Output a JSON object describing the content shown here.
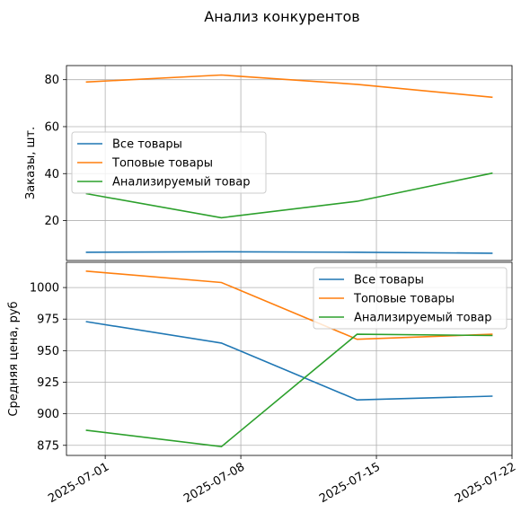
{
  "figure_title": "Анализ конкурентов",
  "chart_data": [
    {
      "type": "line",
      "ylabel": "Заказы, шт.",
      "x": [
        "2025-06-30",
        "2025-07-07",
        "2025-07-14",
        "2025-07-21"
      ],
      "ylim": [
        3,
        86
      ],
      "yticks": [
        20,
        40,
        60,
        80
      ],
      "grid": true,
      "legend_position": "center-left",
      "series": [
        {
          "name": "Все товары",
          "color": "#1f77b4",
          "values": [
            6.5,
            6.7,
            6.5,
            6.1
          ]
        },
        {
          "name": "Топовые товары",
          "color": "#ff7f0e",
          "values": [
            79,
            82,
            78,
            72.5
          ]
        },
        {
          "name": "Анализируемый товар",
          "color": "#2ca02c",
          "values": [
            31.5,
            21.2,
            28.2,
            40.2
          ]
        }
      ]
    },
    {
      "type": "line",
      "ylabel": "Средняя цена, руб",
      "x": [
        "2025-06-30",
        "2025-07-07",
        "2025-07-14",
        "2025-07-21"
      ],
      "ylim": [
        867,
        1020
      ],
      "yticks": [
        875,
        900,
        925,
        950,
        975,
        1000
      ],
      "grid": true,
      "legend_position": "upper-right",
      "series": [
        {
          "name": "Все товары",
          "color": "#1f77b4",
          "values": [
            973,
            956,
            911,
            914
          ]
        },
        {
          "name": "Топовые товары",
          "color": "#ff7f0e",
          "values": [
            1013,
            1004,
            959,
            963
          ]
        },
        {
          "name": "Анализируемый товар",
          "color": "#2ca02c",
          "values": [
            887,
            874,
            963,
            962
          ]
        }
      ]
    }
  ],
  "x_axis": {
    "range": [
      "2025-06-29",
      "2025-07-22"
    ],
    "ticks": [
      "2025-07-01",
      "2025-07-08",
      "2025-07-15",
      "2025-07-22"
    ]
  }
}
